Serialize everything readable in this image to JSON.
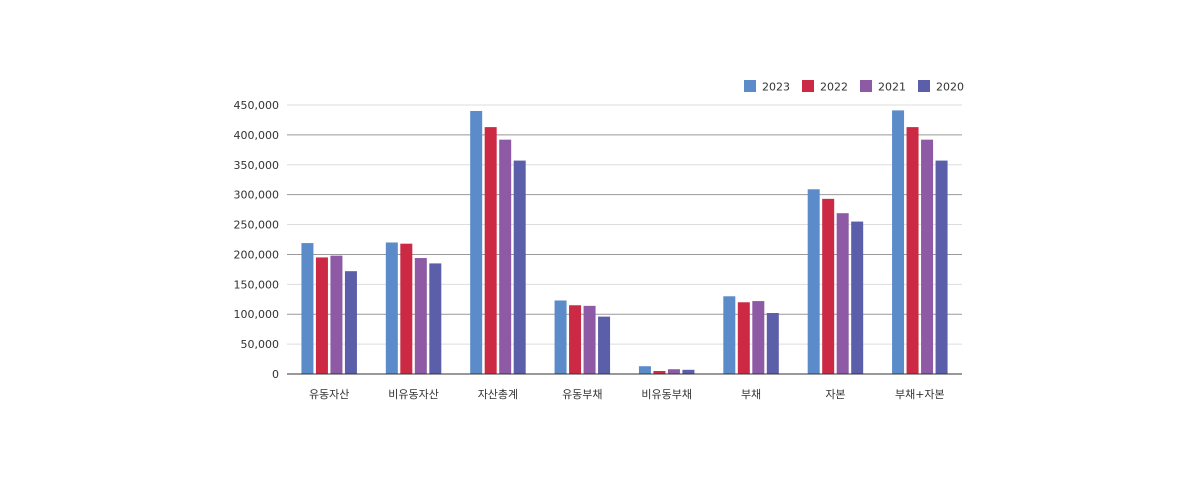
{
  "chart_data": {
    "type": "bar",
    "categories": [
      "유동자산",
      "비유동자산",
      "자산총계",
      "유동부채",
      "비유동부채",
      "부채",
      "자본",
      "부채+자본"
    ],
    "series": [
      {
        "name": "2023",
        "color": "#5b8bc9",
        "values": [
          219000,
          220000,
          440000,
          123000,
          13000,
          130000,
          309000,
          441000
        ]
      },
      {
        "name": "2022",
        "color": "#cc2a44",
        "values": [
          195000,
          218000,
          413000,
          115000,
          5000,
          120000,
          293000,
          413000
        ]
      },
      {
        "name": "2021",
        "color": "#8e5aa6",
        "values": [
          198000,
          194000,
          392000,
          114000,
          8000,
          122000,
          269000,
          392000
        ]
      },
      {
        "name": "2020",
        "color": "#5b5ea9",
        "values": [
          172000,
          185000,
          357000,
          96000,
          7000,
          102000,
          255000,
          357000
        ]
      }
    ],
    "ylim": [
      0,
      450000
    ],
    "ytick_step": 50000,
    "yticks": [
      "0",
      "50,000",
      "100,000",
      "150,000",
      "200,000",
      "250,000",
      "300,000",
      "350,000",
      "400,000",
      "450,000"
    ],
    "legend_position": "top-right",
    "grid": true
  }
}
